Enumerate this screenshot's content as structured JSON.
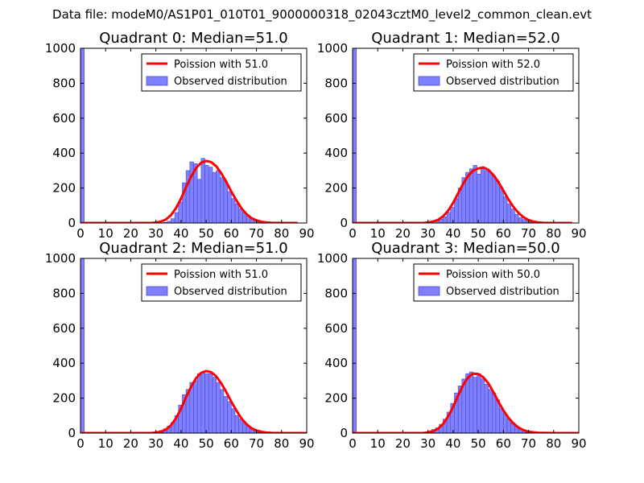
{
  "suptitle": "Data file: modeM0/AS1P01_010T01_9000000318_02043cztM0_level2_common_clean.evt",
  "colors": {
    "bar_fill": "#8080ff",
    "bar_edge": "#4a4ad0",
    "poisson_line": "#ff0000",
    "axis": "#000000"
  },
  "chart_data": [
    {
      "type": "bar",
      "title": "Quadrant 0: Median=51.0",
      "median": 51.0,
      "xlim": [
        0,
        90
      ],
      "ylim": [
        0,
        1000
      ],
      "xticks": [
        "0",
        "10",
        "20",
        "30",
        "40",
        "50",
        "60",
        "70",
        "80",
        "90"
      ],
      "yticks": [
        "0",
        "200",
        "400",
        "600",
        "800",
        "1000"
      ],
      "legend": {
        "position": "top-right",
        "line_label": "Poission with 51.0",
        "bar_label": "Observed distribution"
      },
      "histogram": {
        "bin_width": 1.5,
        "bin_starts": [
          0,
          1.5,
          3,
          4.5,
          6,
          7.5,
          9,
          10.5,
          12,
          13.5,
          15,
          16.5,
          18,
          19.5,
          21,
          22.5,
          24,
          25.5,
          27,
          28.5,
          30,
          31.5,
          33,
          34.5,
          36,
          37.5,
          39,
          40.5,
          42,
          43.5,
          45,
          46.5,
          48,
          49.5,
          51,
          52.5,
          54,
          55.5,
          57,
          58.5,
          60,
          61.5,
          63,
          64.5,
          66,
          67.5,
          69,
          70.5,
          72,
          73.5,
          75,
          76.5,
          78,
          79.5,
          81,
          82.5,
          84,
          85.5,
          87,
          88.5
        ],
        "counts": [
          1000,
          0,
          0,
          0,
          0,
          0,
          0,
          0,
          0,
          0,
          0,
          0,
          0,
          0,
          0,
          0,
          0,
          0,
          0,
          0,
          0,
          0,
          3,
          10,
          25,
          60,
          120,
          230,
          300,
          350,
          340,
          250,
          370,
          330,
          320,
          290,
          300,
          260,
          240,
          180,
          140,
          110,
          80,
          60,
          40,
          20,
          12,
          6,
          3,
          1,
          0,
          0,
          0,
          0,
          0,
          0,
          0,
          0,
          0,
          0
        ]
      },
      "poisson": {
        "x": [
          0,
          15,
          28,
          30,
          32,
          34,
          36,
          38,
          40,
          42,
          44,
          46,
          48,
          50,
          51,
          52,
          54,
          56,
          58,
          60,
          62,
          64,
          66,
          68,
          70,
          72,
          74,
          76,
          80,
          86
        ],
        "y": [
          0,
          0,
          0,
          3,
          8,
          20,
          45,
          85,
          140,
          205,
          265,
          315,
          345,
          355,
          352,
          348,
          325,
          285,
          235,
          180,
          130,
          85,
          52,
          28,
          15,
          7,
          3,
          1,
          0,
          0
        ]
      }
    },
    {
      "type": "bar",
      "title": "Quadrant 1: Median=52.0",
      "median": 52.0,
      "xlim": [
        0,
        90
      ],
      "ylim": [
        0,
        1000
      ],
      "xticks": [
        "0",
        "10",
        "20",
        "30",
        "40",
        "50",
        "60",
        "70",
        "80",
        "90"
      ],
      "yticks": [
        "0",
        "200",
        "400",
        "600",
        "800",
        "1000"
      ],
      "legend": {
        "position": "top-right",
        "line_label": "Poission with 52.0",
        "bar_label": "Observed distribution"
      },
      "histogram": {
        "bin_width": 1.5,
        "bin_starts": [
          0,
          1.5,
          3,
          4.5,
          6,
          7.5,
          9,
          10.5,
          12,
          13.5,
          15,
          16.5,
          18,
          19.5,
          21,
          22.5,
          24,
          25.5,
          27,
          28.5,
          30,
          31.5,
          33,
          34.5,
          36,
          37.5,
          39,
          40.5,
          42,
          43.5,
          45,
          46.5,
          48,
          49.5,
          51,
          52.5,
          54,
          55.5,
          57,
          58.5,
          60,
          61.5,
          63,
          64.5,
          66,
          67.5,
          69,
          70.5,
          72,
          73.5,
          75,
          76.5,
          78,
          79.5,
          81,
          82.5,
          84,
          85.5,
          87,
          88.5
        ],
        "counts": [
          1000,
          0,
          0,
          0,
          0,
          0,
          0,
          0,
          0,
          0,
          0,
          0,
          0,
          0,
          0,
          0,
          0,
          0,
          0,
          0,
          0,
          0,
          12,
          22,
          35,
          60,
          90,
          140,
          200,
          260,
          290,
          310,
          330,
          280,
          310,
          300,
          290,
          270,
          240,
          200,
          150,
          110,
          80,
          50,
          30,
          20,
          12,
          6,
          3,
          1,
          0,
          0,
          0,
          0,
          0,
          0,
          0,
          0,
          0,
          0
        ]
      },
      "poisson": {
        "x": [
          0,
          15,
          28,
          30,
          32,
          34,
          36,
          38,
          40,
          42,
          44,
          46,
          48,
          50,
          52,
          54,
          56,
          58,
          60,
          62,
          64,
          66,
          68,
          70,
          72,
          74,
          76,
          80,
          87
        ],
        "y": [
          0,
          0,
          0,
          3,
          8,
          18,
          38,
          70,
          115,
          170,
          225,
          270,
          300,
          312,
          318,
          305,
          275,
          235,
          185,
          135,
          92,
          58,
          33,
          17,
          8,
          3,
          1,
          0,
          0
        ]
      }
    },
    {
      "type": "bar",
      "title": "Quadrant 2: Median=51.0",
      "median": 51.0,
      "xlim": [
        0,
        90
      ],
      "ylim": [
        0,
        1000
      ],
      "xticks": [
        "0",
        "10",
        "20",
        "30",
        "40",
        "50",
        "60",
        "70",
        "80",
        "90"
      ],
      "yticks": [
        "0",
        "200",
        "400",
        "600",
        "800",
        "1000"
      ],
      "legend": {
        "position": "top-right",
        "line_label": "Poission with 51.0",
        "bar_label": "Observed distribution"
      },
      "histogram": {
        "bin_width": 1.5,
        "bin_starts": [
          0,
          1.5,
          3,
          4.5,
          6,
          7.5,
          9,
          10.5,
          12,
          13.5,
          15,
          16.5,
          18,
          19.5,
          21,
          22.5,
          24,
          25.5,
          27,
          28.5,
          30,
          31.5,
          33,
          34.5,
          36,
          37.5,
          39,
          40.5,
          42,
          43.5,
          45,
          46.5,
          48,
          49.5,
          51,
          52.5,
          54,
          55.5,
          57,
          58.5,
          60,
          61.5,
          63,
          64.5,
          66,
          67.5,
          69,
          70.5,
          72,
          73.5,
          75,
          76.5,
          78,
          79.5,
          81,
          82.5,
          84,
          85.5,
          87,
          88.5
        ],
        "counts": [
          1000,
          0,
          0,
          0,
          0,
          0,
          0,
          0,
          0,
          0,
          0,
          0,
          0,
          0,
          0,
          0,
          0,
          0,
          0,
          0,
          0,
          15,
          25,
          40,
          60,
          100,
          160,
          220,
          250,
          290,
          300,
          340,
          350,
          340,
          340,
          320,
          290,
          250,
          210,
          180,
          140,
          100,
          80,
          60,
          40,
          20,
          12,
          6,
          3,
          1,
          0,
          0,
          0,
          0,
          0,
          0,
          0,
          0,
          0,
          0
        ]
      },
      "poisson": {
        "x": [
          0,
          15,
          28,
          30,
          32,
          34,
          36,
          38,
          40,
          42,
          44,
          46,
          48,
          50,
          51,
          52,
          54,
          56,
          58,
          60,
          62,
          64,
          66,
          68,
          70,
          72,
          74,
          76,
          80,
          90
        ],
        "y": [
          0,
          0,
          0,
          3,
          8,
          20,
          45,
          85,
          140,
          205,
          265,
          315,
          345,
          355,
          352,
          348,
          325,
          285,
          235,
          180,
          130,
          85,
          52,
          28,
          15,
          7,
          3,
          1,
          0,
          0
        ]
      }
    },
    {
      "type": "bar",
      "title": "Quadrant 3: Median=50.0",
      "median": 50.0,
      "xlim": [
        0,
        90
      ],
      "ylim": [
        0,
        1000
      ],
      "xticks": [
        "0",
        "10",
        "20",
        "30",
        "40",
        "50",
        "60",
        "70",
        "80",
        "90"
      ],
      "yticks": [
        "0",
        "200",
        "400",
        "600",
        "800",
        "1000"
      ],
      "legend": {
        "position": "top-right",
        "line_label": "Poission with 50.0",
        "bar_label": "Observed distribution"
      },
      "histogram": {
        "bin_width": 1.5,
        "bin_starts": [
          0,
          1.5,
          3,
          4.5,
          6,
          7.5,
          9,
          10.5,
          12,
          13.5,
          15,
          16.5,
          18,
          19.5,
          21,
          22.5,
          24,
          25.5,
          27,
          28.5,
          30,
          31.5,
          33,
          34.5,
          36,
          37.5,
          39,
          40.5,
          42,
          43.5,
          45,
          46.5,
          48,
          49.5,
          51,
          52.5,
          54,
          55.5,
          57,
          58.5,
          60,
          61.5,
          63,
          64.5,
          66,
          67.5,
          69,
          70.5,
          72,
          73.5,
          75,
          76.5,
          78,
          79.5,
          81,
          82.5,
          84,
          85.5,
          87,
          88.5
        ],
        "counts": [
          1000,
          0,
          0,
          0,
          0,
          0,
          0,
          0,
          0,
          0,
          0,
          0,
          0,
          0,
          0,
          0,
          0,
          0,
          0,
          0,
          0,
          20,
          30,
          50,
          80,
          120,
          170,
          230,
          270,
          310,
          340,
          350,
          320,
          340,
          310,
          280,
          250,
          230,
          190,
          140,
          110,
          80,
          60,
          40,
          25,
          15,
          8,
          4,
          2,
          1,
          0,
          0,
          0,
          0,
          0,
          0,
          0,
          0,
          0,
          0
        ]
      },
      "poisson": {
        "x": [
          0,
          15,
          28,
          30,
          32,
          34,
          36,
          38,
          40,
          42,
          44,
          46,
          48,
          50,
          52,
          54,
          56,
          58,
          60,
          62,
          64,
          66,
          68,
          70,
          72,
          74,
          76,
          80,
          90
        ],
        "y": [
          0,
          0,
          0,
          4,
          11,
          25,
          52,
          95,
          150,
          215,
          275,
          320,
          340,
          338,
          320,
          285,
          235,
          180,
          130,
          88,
          55,
          32,
          17,
          8,
          4,
          2,
          1,
          0,
          0
        ]
      }
    }
  ]
}
